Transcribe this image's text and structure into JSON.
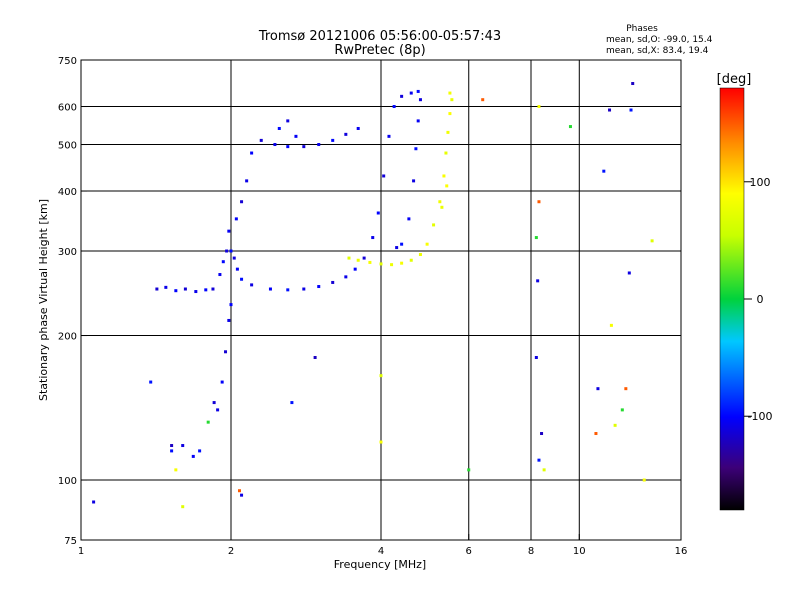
{
  "chart_data": {
    "type": "scatter",
    "title": "Tromsø 20121006 05:56:00-05:57:43",
    "subtitle": "RwPretec (8p)",
    "xlabel": "Frequency [MHz]",
    "ylabel": "Stationary phase Virtual Height [km]",
    "xscale": "log",
    "yscale": "log",
    "xlim": [
      1,
      16
    ],
    "ylim": [
      75,
      750
    ],
    "x_ticks": [
      1,
      2,
      4,
      6,
      8,
      10,
      16
    ],
    "x_tick_labels": [
      "1",
      "2",
      "4",
      "6",
      "8",
      "10",
      "16"
    ],
    "y_ticks": [
      75,
      100,
      200,
      300,
      400,
      500,
      600,
      750
    ],
    "y_tick_labels": [
      "75",
      "100",
      "200",
      "300",
      "400",
      "500",
      "600",
      "750"
    ],
    "grid": true,
    "stats": {
      "heading": "Phases",
      "line_o": "mean, sd,O: -99.0, 15.4",
      "line_x": "mean, sd,X:  83.4, 19.4"
    },
    "colorbar": {
      "label": "[deg]",
      "range": [
        -180,
        180
      ],
      "ticks": [
        100,
        0,
        -100
      ],
      "tick_labels": [
        "100",
        "0",
        "-100"
      ],
      "colormap": "rainbow"
    },
    "series": [
      {
        "values_desc": "ordinary trace",
        "phase": -105,
        "points": [
          [
            1.42,
            250
          ],
          [
            1.48,
            252
          ],
          [
            1.55,
            248
          ],
          [
            1.62,
            250
          ],
          [
            1.7,
            247
          ],
          [
            1.78,
            249
          ],
          [
            1.84,
            250
          ],
          [
            1.9,
            268
          ],
          [
            1.93,
            285
          ],
          [
            1.96,
            300
          ],
          [
            1.98,
            330
          ],
          [
            2.0,
            300
          ],
          [
            2.03,
            290
          ],
          [
            2.06,
            275
          ],
          [
            2.1,
            262
          ],
          [
            2.2,
            255
          ],
          [
            2.4,
            250
          ],
          [
            2.6,
            249
          ],
          [
            2.8,
            250
          ],
          [
            3.0,
            253
          ],
          [
            3.2,
            258
          ],
          [
            3.4,
            265
          ],
          [
            3.55,
            275
          ],
          [
            3.7,
            290
          ],
          [
            3.85,
            320
          ],
          [
            3.95,
            360
          ],
          [
            4.05,
            430
          ],
          [
            4.15,
            520
          ],
          [
            4.25,
            600
          ],
          [
            4.4,
            630
          ],
          [
            4.6,
            640
          ],
          [
            4.75,
            645
          ],
          [
            4.8,
            620
          ],
          [
            4.75,
            560
          ],
          [
            4.7,
            490
          ],
          [
            4.65,
            420
          ],
          [
            4.55,
            350
          ],
          [
            4.4,
            310
          ],
          [
            4.3,
            305
          ],
          [
            2.05,
            350
          ],
          [
            2.1,
            380
          ],
          [
            2.15,
            420
          ],
          [
            2.2,
            480
          ],
          [
            2.3,
            510
          ],
          [
            2.45,
            500
          ],
          [
            2.6,
            495
          ],
          [
            2.8,
            495
          ],
          [
            3.0,
            500
          ],
          [
            3.2,
            510
          ],
          [
            3.4,
            525
          ],
          [
            3.6,
            540
          ],
          [
            2.5,
            540
          ],
          [
            2.6,
            560
          ],
          [
            2.7,
            520
          ],
          [
            1.52,
            115
          ],
          [
            1.6,
            118
          ],
          [
            1.68,
            112
          ],
          [
            1.73,
            115
          ],
          [
            1.88,
            140
          ],
          [
            1.92,
            160
          ],
          [
            1.95,
            185
          ],
          [
            1.98,
            215
          ],
          [
            2.0,
            232
          ],
          [
            1.85,
            145
          ]
        ]
      },
      {
        "values_desc": "extraordinary trace",
        "phase": 80,
        "points": [
          [
            3.45,
            290
          ],
          [
            3.6,
            287
          ],
          [
            3.8,
            284
          ],
          [
            4.0,
            282
          ],
          [
            4.2,
            281
          ],
          [
            4.4,
            283
          ],
          [
            4.6,
            287
          ],
          [
            4.8,
            295
          ],
          [
            4.95,
            310
          ],
          [
            5.1,
            340
          ],
          [
            5.25,
            380
          ],
          [
            5.35,
            430
          ],
          [
            5.4,
            480
          ],
          [
            5.45,
            530
          ],
          [
            5.5,
            580
          ],
          [
            5.55,
            620
          ],
          [
            5.5,
            640
          ],
          [
            5.42,
            410
          ],
          [
            5.3,
            370
          ]
        ]
      },
      {
        "values_desc": "scattered echoes",
        "phase": 0,
        "points": [
          [
            1.06,
            90
          ],
          [
            1.38,
            160
          ],
          [
            1.52,
            118
          ],
          [
            1.55,
            105
          ],
          [
            1.6,
            88
          ],
          [
            1.8,
            132
          ],
          [
            2.08,
            95
          ],
          [
            2.1,
            93
          ],
          [
            2.65,
            145
          ],
          [
            2.95,
            180
          ],
          [
            4.0,
            120
          ],
          [
            4.0,
            165
          ],
          [
            6.0,
            105
          ],
          [
            6.4,
            620
          ],
          [
            8.2,
            180
          ],
          [
            8.3,
            110
          ],
          [
            8.4,
            125
          ],
          [
            8.3,
            600
          ],
          [
            8.5,
            105
          ],
          [
            9.6,
            545
          ],
          [
            10.8,
            125
          ],
          [
            10.9,
            155
          ],
          [
            11.2,
            440
          ],
          [
            11.5,
            590
          ],
          [
            11.6,
            210
          ],
          [
            11.8,
            130
          ],
          [
            12.2,
            140
          ],
          [
            12.4,
            155
          ],
          [
            12.6,
            270
          ],
          [
            12.7,
            590
          ],
          [
            12.8,
            670
          ],
          [
            13.5,
            100
          ],
          [
            14.0,
            315
          ],
          [
            8.2,
            320
          ],
          [
            8.3,
            380
          ],
          [
            8.25,
            260
          ]
        ]
      }
    ]
  }
}
